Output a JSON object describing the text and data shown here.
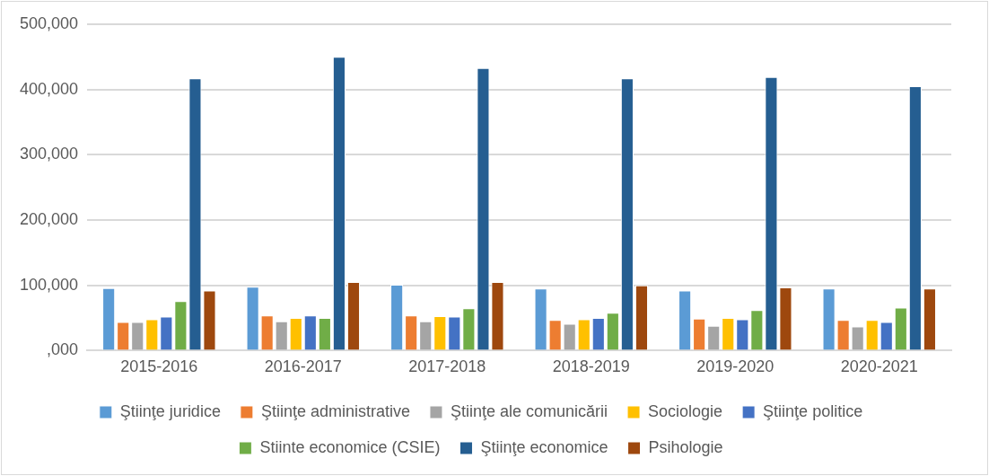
{
  "chart_data": {
    "type": "bar",
    "categories": [
      "2015-2016",
      "2016-2017",
      "2017-2018",
      "2018-2019",
      "2019-2020",
      "2020-2021"
    ],
    "series": [
      {
        "name": "Ştiinţe juridice",
        "color": "#5b9bd5",
        "values": [
          96000,
          98000,
          101000,
          95000,
          92000,
          95000
        ]
      },
      {
        "name": "Ştiinţe administrative",
        "color": "#ed7d31",
        "values": [
          44000,
          54000,
          54000,
          47000,
          49000,
          47000
        ]
      },
      {
        "name": "Ştiinţe ale comunicării",
        "color": "#a5a5a5",
        "values": [
          44000,
          45000,
          45000,
          41000,
          38000,
          37000
        ]
      },
      {
        "name": "Sociologie",
        "color": "#ffc000",
        "values": [
          48000,
          50000,
          53000,
          48000,
          50000,
          47000
        ]
      },
      {
        "name": "Ştiinţe politice",
        "color": "#4472c4",
        "values": [
          52000,
          54000,
          52000,
          50000,
          48000,
          44000
        ]
      },
      {
        "name": "Stiinte economice (CSIE)",
        "color": "#70ad47",
        "values": [
          76000,
          50000,
          65000,
          58000,
          62000,
          66000
        ]
      },
      {
        "name": "Ştiinţe economice",
        "color": "#255e91",
        "values": [
          417000,
          450000,
          433000,
          417000,
          419000,
          405000
        ]
      },
      {
        "name": "Psihologie",
        "color": "#9e480e",
        "values": [
          92000,
          105000,
          105000,
          100000,
          97000,
          95000
        ]
      }
    ],
    "ylim": [
      0,
      500000
    ],
    "yticks": [
      {
        "value": 0,
        "label": ",000"
      },
      {
        "value": 100000,
        "label": "100,000"
      },
      {
        "value": 200000,
        "label": "200,000"
      },
      {
        "value": 300000,
        "label": "300,000"
      },
      {
        "value": 400000,
        "label": "400,000"
      },
      {
        "value": 500000,
        "label": "500,000"
      }
    ],
    "grid": "y",
    "legend": "bottom"
  }
}
